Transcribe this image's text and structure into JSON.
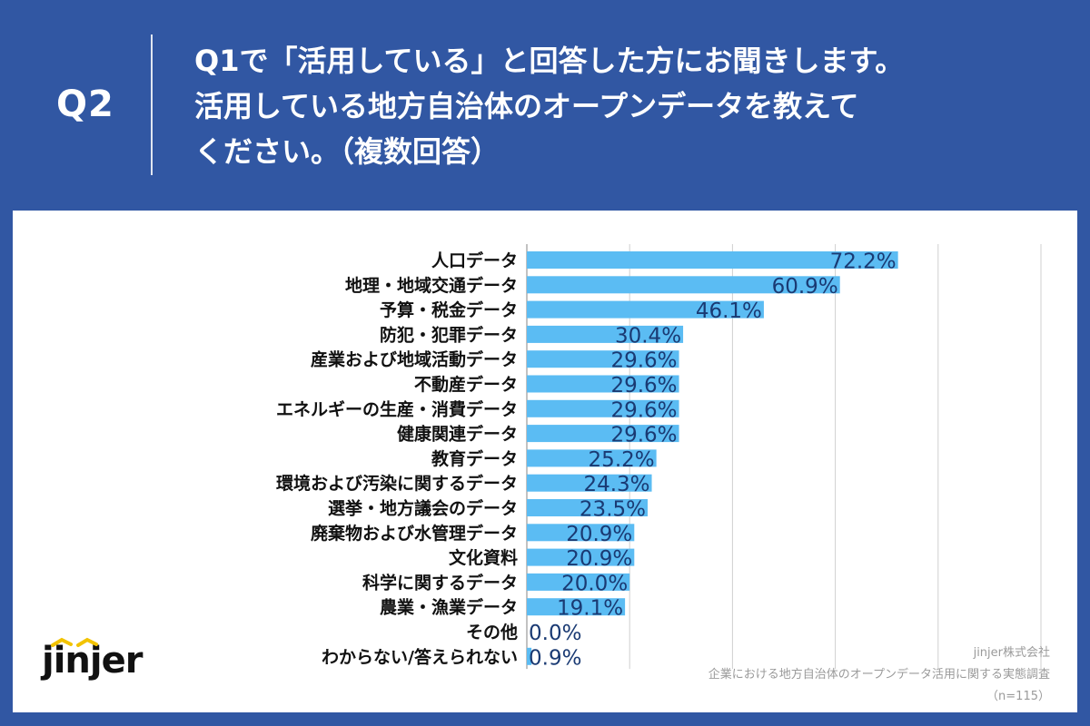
{
  "header": {
    "q_label": "Q2",
    "question_lines": [
      "Q1で「活用している」と回答した方にお聞きします。",
      "活用している地方自治体のオープンデータを教えて",
      "ください。（複数回答）"
    ]
  },
  "colors": {
    "background": "#3157a3",
    "bar": "#5bbcf3",
    "value_text": "#1a3a73",
    "grid": "#cfcfcf"
  },
  "chart_data": {
    "type": "bar",
    "orientation": "horizontal",
    "categories": [
      "人口データ",
      "地理・地域交通データ",
      "予算・税金データ",
      "防犯・犯罪データ",
      "産業および地域活動データ",
      "不動産データ",
      "エネルギーの生産・消費データ",
      "健康関連データ",
      "教育データ",
      "環境および汚染に関するデータ",
      "選挙・地方議会のデータ",
      "廃棄物および水管理データ",
      "文化資料",
      "科学に関するデータ",
      "農業・漁業データ",
      "その他",
      "わからない/答えられない"
    ],
    "values": [
      72.2,
      60.9,
      46.1,
      30.4,
      29.6,
      29.6,
      29.6,
      29.6,
      25.2,
      24.3,
      23.5,
      20.9,
      20.9,
      20.0,
      19.1,
      0.0,
      0.9
    ],
    "value_labels": [
      "72.2%",
      "60.9%",
      "46.1%",
      "30.4%",
      "29.6%",
      "29.6%",
      "29.6%",
      "29.6%",
      "25.2%",
      "24.3%",
      "23.5%",
      "20.9%",
      "20.9%",
      "20.0%",
      "19.1%",
      "0.0%",
      "0.9%"
    ],
    "xlim": [
      0,
      100
    ],
    "grid": true
  },
  "logo": {
    "text": "jinjer"
  },
  "source": {
    "company": "jinjer株式会社",
    "survey": "企業における地方自治体のオープンデータ活用に関する実態調査",
    "n": "（n=115）"
  }
}
